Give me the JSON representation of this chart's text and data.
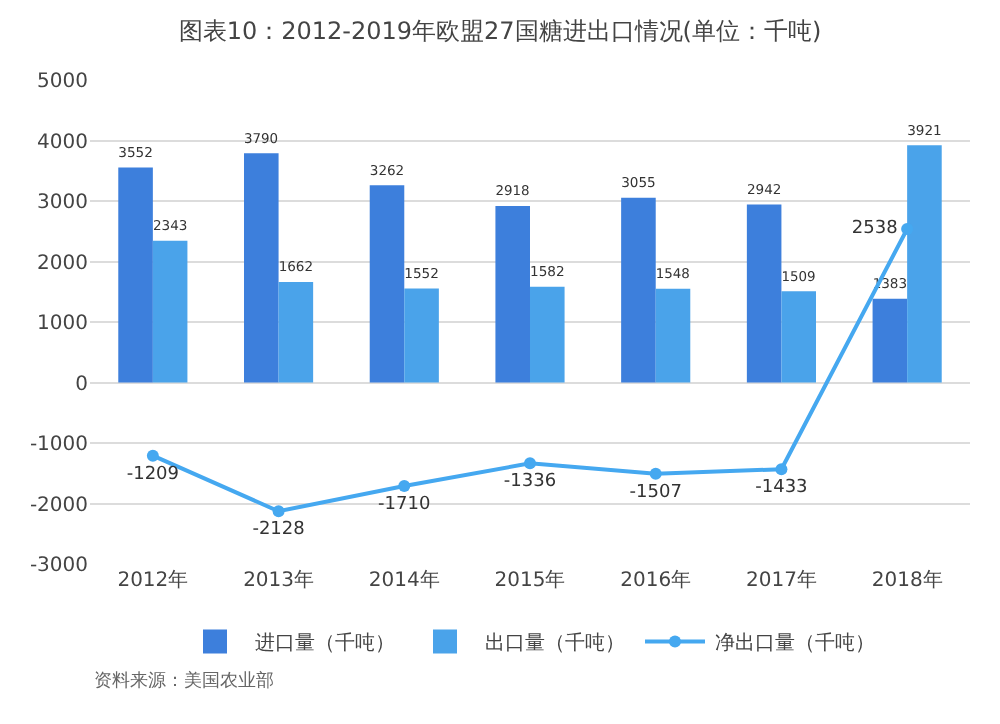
{
  "chart_data": {
    "type": "bar",
    "title": "图表10：2012-2019年欧盟27国糖进出口情况(单位：千吨)",
    "categories": [
      "2012年",
      "2013年",
      "2014年",
      "2015年",
      "2016年",
      "2017年",
      "2018年"
    ],
    "series": [
      {
        "name": "进口量（千吨）",
        "color": "#3d7fdc",
        "values": [
          3552,
          3790,
          3262,
          2918,
          3055,
          2942,
          1383
        ]
      },
      {
        "name": "出口量（千吨）",
        "color": "#4aa3ea",
        "values": [
          2343,
          1662,
          1552,
          1582,
          1548,
          1509,
          3921
        ]
      },
      {
        "name": "净出口量（千吨）",
        "type": "line",
        "color": "#45a8f0",
        "marker": "circle",
        "values": [
          -1209,
          -2128,
          -1710,
          -1336,
          -1507,
          -1433,
          2538
        ]
      }
    ],
    "ylim": [
      -3000,
      5000
    ],
    "yticks": [
      -3000,
      -2000,
      -1000,
      0,
      1000,
      2000,
      3000,
      4000,
      5000
    ],
    "grid": "y",
    "legend": "bottom",
    "data_labels": true,
    "annotations": [
      "资料来源：美国农业部"
    ]
  }
}
